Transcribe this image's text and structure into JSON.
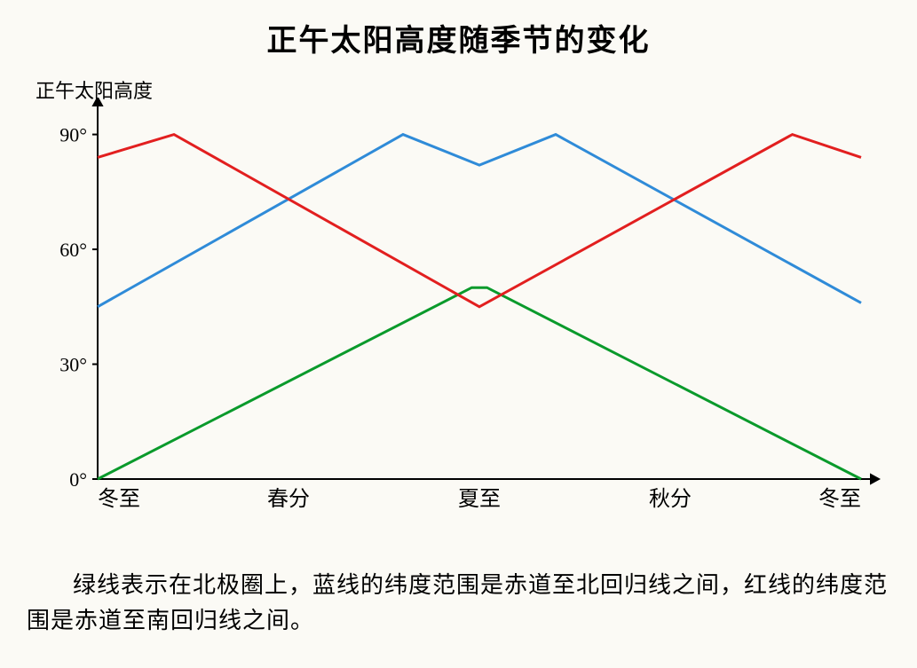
{
  "title": "正午太阳高度随季节的变化",
  "y_axis_label": "正午太阳高度",
  "caption": "绿线表示在北极圈上，蓝线的纬度范围是赤道至北回归线之间，红线的纬度范围是赤道至南回归线之间。",
  "chart": {
    "type": "line",
    "background_color": "#fbfaf5",
    "axis_color": "#000000",
    "axis_width": 2,
    "arrow_size": 12,
    "line_width": 3,
    "ylim": [
      0,
      95
    ],
    "y_ticks": [
      0,
      30,
      60,
      90
    ],
    "y_tick_labels": [
      "0°",
      "30°",
      "60°",
      "90°"
    ],
    "y_tick_fontsize": 22,
    "x_categories": [
      "冬至",
      "春分",
      "夏至",
      "秋分",
      "冬至"
    ],
    "x_category_positions": [
      0,
      0.25,
      0.5,
      0.75,
      1.0
    ],
    "x_label_fontsize": 24,
    "series": [
      {
        "name": "green",
        "color": "#0a9a2b",
        "points": [
          {
            "x": 0.0,
            "y": 0
          },
          {
            "x": 0.49,
            "y": 50
          },
          {
            "x": 0.51,
            "y": 50
          },
          {
            "x": 1.0,
            "y": 0
          }
        ]
      },
      {
        "name": "blue",
        "color": "#2f8bd8",
        "points": [
          {
            "x": 0.0,
            "y": 45
          },
          {
            "x": 0.4,
            "y": 90
          },
          {
            "x": 0.5,
            "y": 82
          },
          {
            "x": 0.6,
            "y": 90
          },
          {
            "x": 1.0,
            "y": 46
          }
        ]
      },
      {
        "name": "red",
        "color": "#e21f1f",
        "points": [
          {
            "x": 0.0,
            "y": 84
          },
          {
            "x": 0.1,
            "y": 90
          },
          {
            "x": 0.5,
            "y": 45
          },
          {
            "x": 0.91,
            "y": 90
          },
          {
            "x": 1.0,
            "y": 84
          }
        ]
      }
    ]
  }
}
